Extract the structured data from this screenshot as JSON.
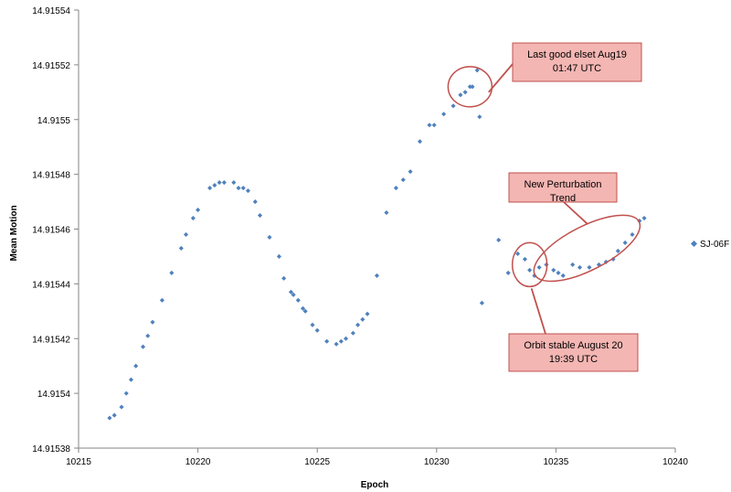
{
  "chart_data": {
    "type": "scatter",
    "xlabel": "Epoch",
    "ylabel": "Mean Motion",
    "xlim": [
      10215,
      10240
    ],
    "ylim": [
      14.91538,
      14.91554
    ],
    "x_ticks": [
      "10215",
      "10220",
      "10225",
      "10230",
      "10235",
      "10240"
    ],
    "y_ticks": [
      "14.91538",
      "14.9154",
      "14.91542",
      "14.91544",
      "14.91546",
      "14.91548",
      "14.9155",
      "14.91552",
      "14.91554"
    ],
    "grid": false,
    "legend_position": "right",
    "series": [
      {
        "name": "SJ-06F",
        "color": "#4F81BD",
        "points": [
          [
            10216.3,
            14.915391
          ],
          [
            10216.5,
            14.915392
          ],
          [
            10216.8,
            14.915395
          ],
          [
            10217.0,
            14.9154
          ],
          [
            10217.2,
            14.915405
          ],
          [
            10217.4,
            14.91541
          ],
          [
            10217.7,
            14.915417
          ],
          [
            10217.9,
            14.915421
          ],
          [
            10218.1,
            14.915426
          ],
          [
            10218.5,
            14.915434
          ],
          [
            10218.9,
            14.915444
          ],
          [
            10219.3,
            14.915453
          ],
          [
            10219.5,
            14.915458
          ],
          [
            10219.8,
            14.915464
          ],
          [
            10220.0,
            14.915467
          ],
          [
            10220.5,
            14.915475
          ],
          [
            10220.7,
            14.915476
          ],
          [
            10220.9,
            14.915477
          ],
          [
            10221.1,
            14.915477
          ],
          [
            10221.5,
            14.915477
          ],
          [
            10221.7,
            14.915475
          ],
          [
            10221.9,
            14.915475
          ],
          [
            10222.1,
            14.915474
          ],
          [
            10222.4,
            14.91547
          ],
          [
            10222.6,
            14.915465
          ],
          [
            10223.0,
            14.915457
          ],
          [
            10223.4,
            14.91545
          ],
          [
            10223.6,
            14.915442
          ],
          [
            10223.9,
            14.915437
          ],
          [
            10224.0,
            14.915436
          ],
          [
            10224.2,
            14.915434
          ],
          [
            10224.4,
            14.915431
          ],
          [
            10224.5,
            14.91543
          ],
          [
            10224.8,
            14.915425
          ],
          [
            10225.0,
            14.915423
          ],
          [
            10225.4,
            14.915419
          ],
          [
            10225.8,
            14.915418
          ],
          [
            10226.0,
            14.915419
          ],
          [
            10226.2,
            14.91542
          ],
          [
            10226.5,
            14.915422
          ],
          [
            10226.7,
            14.915425
          ],
          [
            10226.9,
            14.915427
          ],
          [
            10227.1,
            14.915429
          ],
          [
            10227.5,
            14.915443
          ],
          [
            10227.9,
            14.915466
          ],
          [
            10228.3,
            14.915475
          ],
          [
            10228.6,
            14.915478
          ],
          [
            10228.9,
            14.915481
          ],
          [
            10229.3,
            14.915492
          ],
          [
            10229.7,
            14.915498
          ],
          [
            10229.9,
            14.915498
          ],
          [
            10230.3,
            14.915502
          ],
          [
            10230.7,
            14.915505
          ],
          [
            10231.0,
            14.915509
          ],
          [
            10231.2,
            14.91551
          ],
          [
            10231.4,
            14.915512
          ],
          [
            10231.5,
            14.915512
          ],
          [
            10231.7,
            14.915518
          ],
          [
            10231.8,
            14.915501
          ],
          [
            10231.9,
            14.915433
          ],
          [
            10232.6,
            14.915456
          ],
          [
            10233.0,
            14.915444
          ],
          [
            10233.4,
            14.915451
          ],
          [
            10233.7,
            14.915449
          ],
          [
            10233.9,
            14.915445
          ],
          [
            10234.1,
            14.915443
          ],
          [
            10234.3,
            14.915446
          ],
          [
            10234.6,
            14.915447
          ],
          [
            10234.9,
            14.915445
          ],
          [
            10235.1,
            14.915444
          ],
          [
            10235.3,
            14.915443
          ],
          [
            10235.7,
            14.915447
          ],
          [
            10236.0,
            14.915446
          ],
          [
            10236.4,
            14.915446
          ],
          [
            10236.8,
            14.915447
          ],
          [
            10237.1,
            14.915448
          ],
          [
            10237.4,
            14.915449
          ],
          [
            10237.6,
            14.915452
          ],
          [
            10237.9,
            14.915455
          ],
          [
            10238.2,
            14.915458
          ],
          [
            10238.5,
            14.915463
          ],
          [
            10238.7,
            14.915464
          ]
        ]
      }
    ],
    "annotations": [
      {
        "lines": [
          "Last good elset Aug19",
          "01:47 UTC"
        ],
        "target_x": 10231.4,
        "target_y": 14.915512,
        "target_r": 1.2
      },
      {
        "lines": [
          "New Perturbation",
          "Trend"
        ],
        "target_x": 10236.3,
        "target_y": 14.915453,
        "target_r": 3.6
      },
      {
        "lines": [
          "Orbit stable August 20",
          "19:39 UTC"
        ],
        "target_x": 10233.9,
        "target_y": 14.915447,
        "target_r": 1.0
      }
    ],
    "callout_fill": "#F4B6B3",
    "callout_stroke": "#C0504D",
    "ellipse_stroke": "#C0504D"
  }
}
